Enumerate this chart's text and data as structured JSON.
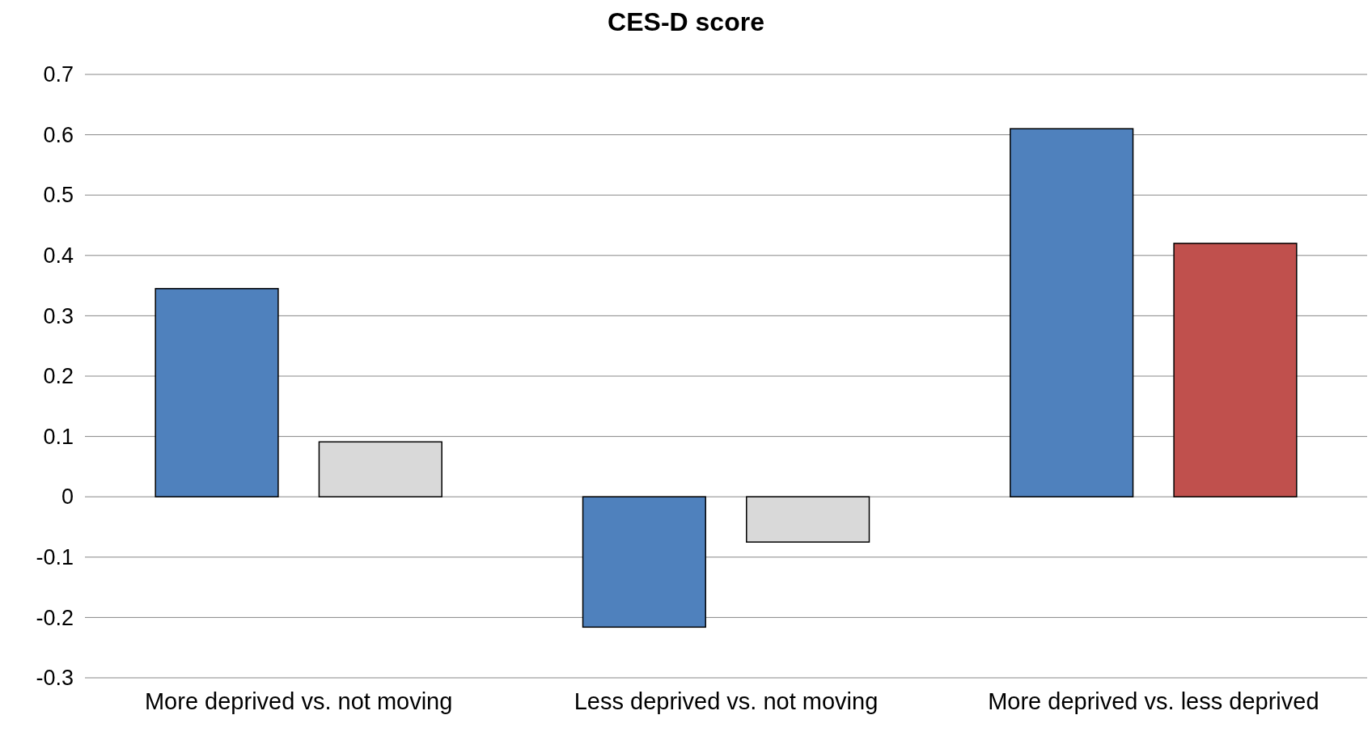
{
  "chart_data": {
    "type": "bar",
    "title": "CES-D score",
    "categories": [
      "More deprived vs. not moving",
      "Less deprived vs. not moving",
      "More deprived vs. less deprived"
    ],
    "series": [
      {
        "color": "#4f81bd",
        "values": [
          0.345,
          -0.216,
          0.61
        ]
      },
      {
        "colors": [
          "#d9d9d9",
          "#d9d9d9",
          "#c0504d"
        ],
        "values": [
          0.091,
          -0.075,
          0.42
        ]
      }
    ],
    "ylim": [
      -0.3,
      0.7
    ],
    "yticks": [
      -0.3,
      -0.2,
      -0.1,
      0,
      0.1,
      0.2,
      0.3,
      0.4,
      0.5,
      0.6,
      0.7
    ],
    "grid": "y"
  }
}
